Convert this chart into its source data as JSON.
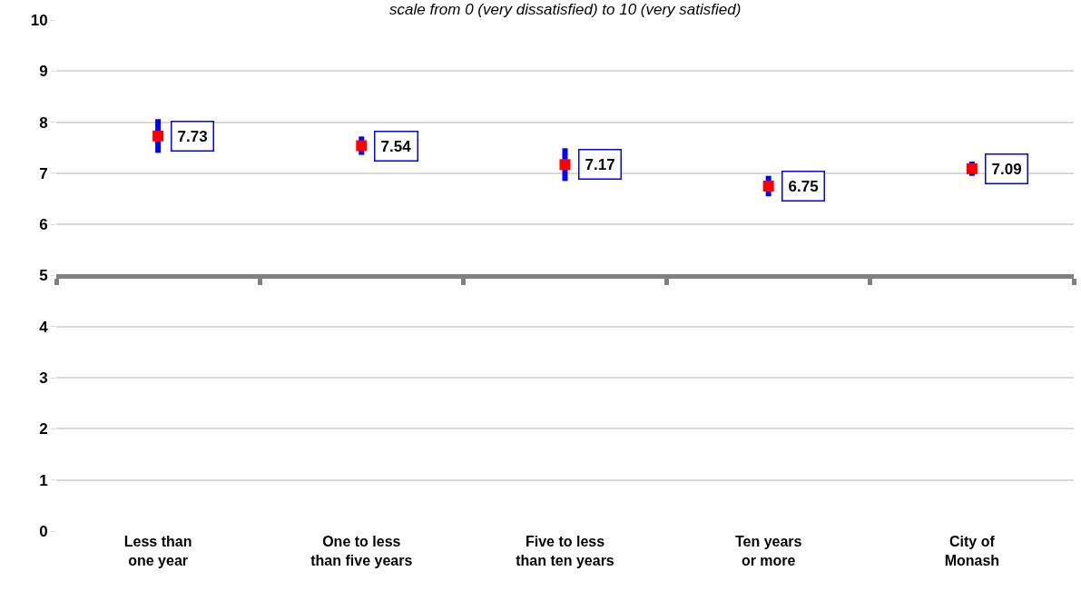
{
  "chart_data": {
    "type": "scatter",
    "subtitle": "scale from 0 (very dissatisfied) to 10 (very satisfied)",
    "categories": [
      "Less than one year",
      "One to less than five years",
      "Five to less than ten years",
      "Ten years or more",
      "City of Monash"
    ],
    "series": [
      {
        "color": "#ff0000",
        "values": [
          7.73,
          7.54,
          7.17,
          6.75,
          7.09
        ],
        "errors": [
          0.33,
          0.18,
          0.32,
          0.2,
          0.14
        ]
      }
    ],
    "ylim": [
      0,
      10
    ],
    "yticks": [
      0,
      1,
      2,
      3,
      4,
      5,
      6,
      7,
      8,
      9,
      10
    ],
    "grid": "y",
    "marker": "square",
    "data_labels": true,
    "ref_lines": [
      {
        "axis": "y",
        "value": 5,
        "color": "#808080"
      }
    ]
  }
}
